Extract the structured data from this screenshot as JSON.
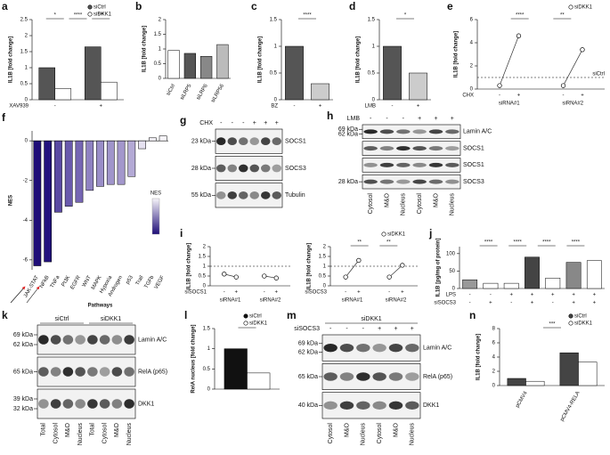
{
  "chart_data": [
    {
      "panel": "a",
      "type": "bar",
      "ylabel": "IL1B [fold change]",
      "ylim": [
        0,
        2.5
      ],
      "yticks": [
        0,
        0.5,
        1,
        1.5,
        2,
        2.5
      ],
      "category_label": "XAV939",
      "categories": [
        "-",
        "+"
      ],
      "series": [
        {
          "name": "siCtrl",
          "color": "#555555",
          "values": [
            1.0,
            1.65
          ]
        },
        {
          "name": "siDKK1",
          "color": "#ffffff",
          "values": [
            0.35,
            0.55
          ]
        }
      ],
      "annotations": [
        "*",
        "****",
        "***"
      ]
    },
    {
      "panel": "b",
      "type": "bar",
      "ylabel": "IL1B [fold change]",
      "ylim": [
        0,
        2
      ],
      "yticks": [
        0,
        0.5,
        1,
        1.5,
        2
      ],
      "categories": [
        "siCtrl",
        "siLRP5",
        "siLRP6",
        "siLRP56"
      ],
      "values": [
        0.95,
        0.85,
        0.75,
        1.15
      ],
      "colors": [
        "#ffffff",
        "#555555",
        "#888888",
        "#bbbbbb"
      ]
    },
    {
      "panel": "c",
      "type": "bar",
      "ylabel": "IL1B [fold change]",
      "ylim": [
        0,
        1.5
      ],
      "yticks": [
        0,
        0.5,
        1,
        1.5
      ],
      "category_label": "BZ",
      "categories": [
        "-",
        "+"
      ],
      "values": [
        1.0,
        0.3
      ],
      "colors": [
        "#555555",
        "#cccccc"
      ],
      "annotations": [
        "****"
      ]
    },
    {
      "panel": "d",
      "type": "bar",
      "ylabel": "IL1B [fold change]",
      "ylim": [
        0,
        1.5
      ],
      "yticks": [
        0,
        0.5,
        1,
        1.5
      ],
      "category_label": "LMB",
      "categories": [
        "-",
        "+"
      ],
      "values": [
        1.0,
        0.5
      ],
      "colors": [
        "#555555",
        "#cccccc"
      ],
      "annotations": [
        "*"
      ]
    },
    {
      "panel": "e",
      "type": "paired",
      "ylabel": "IL1B [fold change]",
      "ylim": [
        0,
        6
      ],
      "yticks": [
        0,
        2,
        4,
        6
      ],
      "category_label": "CHX",
      "legend": "siDKK1",
      "refline": {
        "value": 1,
        "label": "siCtrl"
      },
      "groups": [
        {
          "name": "siRNA#1",
          "categories": [
            "-",
            "+"
          ],
          "values": [
            0.3,
            4.6
          ]
        },
        {
          "name": "siRNA#2",
          "categories": [
            "-",
            "+"
          ],
          "values": [
            0.3,
            3.4
          ]
        }
      ],
      "annotations": [
        "****",
        "**"
      ]
    },
    {
      "panel": "f",
      "type": "bar",
      "ylabel": "NES",
      "xlabel": "Pathways",
      "colorbar_label": "NES",
      "ylim": [
        -6.5,
        0.5
      ],
      "yticks": [
        0,
        -2,
        -4,
        -6
      ],
      "categories": [
        "JAK-STAT",
        "NFkB",
        "TNFa",
        "PI3K",
        "EGFR",
        "WNT",
        "MAPK",
        "Hypoxia",
        "Androgen",
        "p53",
        "Trail",
        "TGFb",
        "VEGF"
      ],
      "values": [
        -6.3,
        -6.1,
        -3.6,
        -3.3,
        -3.1,
        -2.5,
        -2.3,
        -2.2,
        -2.2,
        -1.8,
        -0.4,
        0.15,
        0.25
      ],
      "colors": [
        "#1f0e78",
        "#23127e",
        "#5a4aa3",
        "#6a5aad",
        "#7666b4",
        "#8f82c2",
        "#9a8ec8",
        "#a095cb",
        "#a397cc",
        "#b3a9d5",
        "#e6e2f1",
        "#f4f2f8",
        "#f6f4f9"
      ]
    },
    {
      "panel": "i",
      "type": "paired",
      "ylabel": "IL1B [fold change]",
      "ylim": [
        0,
        2
      ],
      "yticks": [
        0,
        0.5,
        1,
        1.5,
        2
      ],
      "category_label": "siSOCS1",
      "refline": {
        "value": 1
      },
      "groups": [
        {
          "name": "siRNA#1",
          "categories": [
            "-",
            "+"
          ],
          "values": [
            0.6,
            0.45
          ]
        },
        {
          "name": "siRNA#2",
          "categories": [
            "-",
            "+"
          ],
          "values": [
            0.5,
            0.4
          ]
        }
      ]
    },
    {
      "type": "paired",
      "ylabel": "IL1B [fold change]",
      "ylim": [
        0,
        2
      ],
      "yticks": [
        0,
        0.5,
        1,
        1.5,
        2
      ],
      "category_label": "siSOCS3",
      "legend": "siDKK1",
      "refline": {
        "value": 1
      },
      "groups": [
        {
          "name": "siRNA#1",
          "categories": [
            "-",
            "+"
          ],
          "values": [
            0.45,
            1.3
          ]
        },
        {
          "name": "siRNA#2",
          "categories": [
            "-",
            "+"
          ],
          "values": [
            0.45,
            1.05
          ]
        }
      ],
      "annotations": [
        "**",
        "**"
      ]
    },
    {
      "panel": "j",
      "type": "bar",
      "ylabel": "IL1B [pg/mg of protein]",
      "ylim": [
        0,
        120
      ],
      "yticks": [
        0,
        50,
        100
      ],
      "category_label": "LPS",
      "categories": [
        "-",
        "-",
        "+",
        "+",
        "+",
        "+",
        "+"
      ],
      "xrows": [
        {
          "name": "siSOCS3",
          "labels": [
            "-",
            "+",
            "-",
            "+",
            "-",
            "+",
            "+"
          ]
        }
      ],
      "values": [
        25,
        15,
        15,
        90,
        30,
        75,
        80
      ],
      "colors": [
        "#999999",
        "#ffffff",
        "#ffffff",
        "#444444",
        "#ffffff",
        "#888888",
        "#ffffff"
      ],
      "annotations": [
        "****",
        "****",
        "****",
        "****"
      ]
    },
    {
      "panel": "l",
      "type": "bar",
      "ylabel": "RelA nucleus [fold change]",
      "ylim": [
        0,
        1.5
      ],
      "yticks": [
        0,
        0.5,
        1,
        1.5
      ],
      "categories": [
        null
      ],
      "series": [
        {
          "name": "siCtrl",
          "color": "#111111",
          "values": [
            1.0
          ]
        },
        {
          "name": "siDKK1",
          "color": "#ffffff",
          "values": [
            0.4
          ]
        }
      ],
      "annotations": [
        "*"
      ]
    },
    {
      "panel": "n",
      "type": "bar",
      "ylabel": "IL1B [fold change]",
      "ylim": [
        0,
        8
      ],
      "yticks": [
        0,
        2,
        4,
        6,
        8
      ],
      "categories": [
        "pCMV4",
        "pCMV4-RELA"
      ],
      "series": [
        {
          "name": "siCtrl",
          "color": "#444444",
          "values": [
            1.0,
            4.6
          ]
        },
        {
          "name": "siDKK1",
          "color": "#ffffff",
          "values": [
            0.6,
            3.3
          ]
        }
      ],
      "annotations": [
        "***"
      ]
    }
  ],
  "blots": [
    {
      "panel": "g",
      "condition_row": {
        "name": "CHX",
        "labels": [
          "-",
          "-",
          "-",
          "+",
          "+",
          "+"
        ]
      },
      "rows": [
        {
          "markers": [
            "23 kDa"
          ],
          "protein": "SOCS1"
        },
        {
          "markers": [
            "28 kDa"
          ],
          "protein": "SOCS3"
        },
        {
          "markers": [
            "55 kDa"
          ],
          "protein": "Tubulin"
        }
      ]
    },
    {
      "panel": "h",
      "condition_row": {
        "name": "LMB",
        "labels": [
          "-",
          "-",
          "-",
          "+",
          "+",
          "+"
        ]
      },
      "rows": [
        {
          "markers": [
            "69 kDa",
            "62 kDa"
          ],
          "protein": "Lamin A/C"
        },
        {
          "markers": [],
          "protein": "SOCS1"
        },
        {
          "markers": [],
          "protein": "SOCS1"
        },
        {
          "markers": [
            "28 kDa"
          ],
          "protein": "SOCS3"
        }
      ],
      "lanes": [
        "Cytosol",
        "M&O",
        "Nucleus",
        "Cytosol",
        "M&O",
        "Nucleus"
      ]
    },
    {
      "panel": "k",
      "groups": [
        "siCtrl",
        "siDKK1"
      ],
      "rows": [
        {
          "markers": [
            "69 kDa",
            "62 kDa"
          ],
          "protein": "Lamin A/C"
        },
        {
          "markers": [
            "65 kDa"
          ],
          "protein": "RelA (p65)"
        },
        {
          "markers": [
            "39 kDa",
            "32 kDa"
          ],
          "protein": "DKK1"
        }
      ],
      "lanes": [
        "Total",
        "Cytosol",
        "M&O",
        "Nucleus",
        "Total",
        "Cytosol",
        "M&O",
        "Nucleus"
      ]
    },
    {
      "panel": "m",
      "groups": [
        "siDKK1"
      ],
      "condition_row": {
        "name": "siSOCS3",
        "labels": [
          "-",
          "-",
          "-",
          "+",
          "+",
          "+"
        ]
      },
      "rows": [
        {
          "markers": [
            "69 kDa",
            "62 kDa"
          ],
          "protein": "Lamin A/C"
        },
        {
          "markers": [
            "65 kDa"
          ],
          "protein": "RelA (p65)"
        },
        {
          "markers": [
            "40 kDa"
          ],
          "protein": "DKK1"
        }
      ],
      "lanes": [
        "Cytosol",
        "M&O",
        "Nucleus",
        "Cytosol",
        "M&O",
        "Nucleus"
      ]
    }
  ]
}
